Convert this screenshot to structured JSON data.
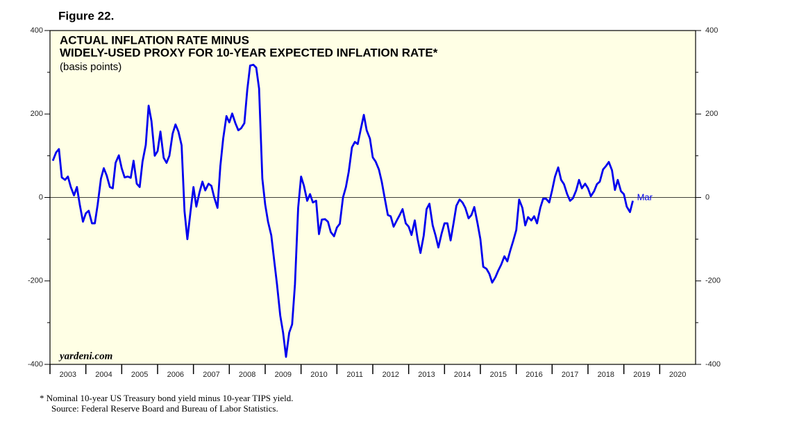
{
  "chart_data": {
    "type": "line",
    "figure_label": "Figure 22.",
    "title_lines": [
      "ACTUAL INFLATION RATE MINUS",
      "WIDELY-USED PROXY FOR 10-YEAR EXPECTED INFLATION RATE*"
    ],
    "subtitle": "(basis points)",
    "watermark": "yardeni.com",
    "annotation": "Mar",
    "footnotes": [
      "*  Nominal 10-year US Treasury bond yield minus 10-year TIPS yield.",
      "Source: Federal Reserve Board and Bureau of Labor Statistics."
    ],
    "color": "#0000ee",
    "xlim": [
      2003,
      2021
    ],
    "xticks": [
      2003,
      2004,
      2005,
      2006,
      2007,
      2008,
      2009,
      2010,
      2011,
      2012,
      2013,
      2014,
      2015,
      2016,
      2017,
      2018,
      2019,
      2020
    ],
    "ylim": [
      -400,
      400
    ],
    "yticks": [
      -400,
      -200,
      0,
      200,
      400
    ],
    "x": [
      2003.08,
      2003.17,
      2003.25,
      2003.33,
      2003.42,
      2003.5,
      2003.58,
      2003.67,
      2003.75,
      2003.83,
      2003.92,
      2004,
      2004.08,
      2004.17,
      2004.25,
      2004.33,
      2004.42,
      2004.5,
      2004.58,
      2004.67,
      2004.75,
      2004.83,
      2004.92,
      2005,
      2005.08,
      2005.17,
      2005.25,
      2005.33,
      2005.42,
      2005.5,
      2005.58,
      2005.67,
      2005.75,
      2005.83,
      2005.92,
      2006,
      2006.08,
      2006.17,
      2006.25,
      2006.33,
      2006.42,
      2006.5,
      2006.58,
      2006.67,
      2006.75,
      2006.83,
      2006.92,
      2007,
      2007.08,
      2007.17,
      2007.25,
      2007.33,
      2007.42,
      2007.5,
      2007.58,
      2007.67,
      2007.75,
      2007.83,
      2007.92,
      2008,
      2008.08,
      2008.17,
      2008.25,
      2008.33,
      2008.42,
      2008.5,
      2008.58,
      2008.67,
      2008.75,
      2008.83,
      2008.92,
      2009,
      2009.08,
      2009.17,
      2009.25,
      2009.33,
      2009.42,
      2009.5,
      2009.58,
      2009.67,
      2009.75,
      2009.83,
      2009.92,
      2010,
      2010.08,
      2010.17,
      2010.25,
      2010.33,
      2010.42,
      2010.5,
      2010.58,
      2010.67,
      2010.75,
      2010.83,
      2010.92,
      2011,
      2011.08,
      2011.17,
      2011.25,
      2011.33,
      2011.42,
      2011.5,
      2011.58,
      2011.67,
      2011.75,
      2011.83,
      2011.92,
      2012,
      2012.08,
      2012.17,
      2012.25,
      2012.33,
      2012.42,
      2012.5,
      2012.58,
      2012.67,
      2012.75,
      2012.83,
      2012.92,
      2013,
      2013.08,
      2013.17,
      2013.25,
      2013.33,
      2013.42,
      2013.5,
      2013.58,
      2013.67,
      2013.75,
      2013.83,
      2013.92,
      2014,
      2014.08,
      2014.17,
      2014.25,
      2014.33,
      2014.42,
      2014.5,
      2014.58,
      2014.67,
      2014.75,
      2014.83,
      2014.92,
      2015,
      2015.08,
      2015.17,
      2015.25,
      2015.33,
      2015.42,
      2015.5,
      2015.58,
      2015.67,
      2015.75,
      2015.83,
      2015.92,
      2016,
      2016.08,
      2016.17,
      2016.25,
      2016.33,
      2016.42,
      2016.5,
      2016.58,
      2016.67,
      2016.75,
      2016.83,
      2016.92,
      2017,
      2017.08,
      2017.17,
      2017.25,
      2017.33,
      2017.42,
      2017.5,
      2017.58,
      2017.67,
      2017.75,
      2017.83,
      2017.92,
      2018,
      2018.08,
      2018.17,
      2018.25,
      2018.33,
      2018.42,
      2018.5,
      2018.58,
      2018.67,
      2018.75,
      2018.83,
      2018.92,
      2019,
      2019.08,
      2019.17,
      2019.25
    ],
    "values": [
      88,
      108,
      116,
      48,
      42,
      50,
      25,
      5,
      25,
      -17,
      -58,
      -38,
      -32,
      -62,
      -62,
      -17,
      45,
      70,
      53,
      25,
      22,
      83,
      101,
      70,
      48,
      50,
      47,
      88,
      33,
      25,
      86,
      126,
      220,
      183,
      100,
      111,
      158,
      95,
      83,
      100,
      153,
      175,
      158,
      125,
      -33,
      -100,
      -33,
      25,
      -22,
      13,
      38,
      17,
      33,
      28,
      0,
      -25,
      75,
      141,
      195,
      180,
      201,
      178,
      161,
      166,
      178,
      258,
      316,
      318,
      311,
      261,
      45,
      -17,
      -58,
      -91,
      -150,
      -208,
      -283,
      -324,
      -382,
      -324,
      -304,
      -208,
      -25,
      50,
      28,
      -8,
      8,
      -12,
      -8,
      -88,
      -53,
      -52,
      -58,
      -83,
      -93,
      -72,
      -63,
      0,
      25,
      62,
      120,
      133,
      128,
      166,
      198,
      161,
      141,
      96,
      86,
      67,
      38,
      0,
      -42,
      -45,
      -70,
      -55,
      -42,
      -28,
      -62,
      -70,
      -90,
      -55,
      -100,
      -133,
      -91,
      -28,
      -15,
      -67,
      -91,
      -120,
      -86,
      -62,
      -62,
      -103,
      -62,
      -20,
      -5,
      -12,
      -25,
      -50,
      -42,
      -23,
      -62,
      -100,
      -166,
      -171,
      -183,
      -204,
      -191,
      -175,
      -161,
      -141,
      -153,
      -128,
      -103,
      -78,
      -5,
      -25,
      -67,
      -47,
      -55,
      -45,
      -62,
      -25,
      -3,
      -3,
      -12,
      17,
      50,
      72,
      42,
      32,
      8,
      -8,
      -2,
      17,
      42,
      22,
      33,
      22,
      3,
      15,
      32,
      38,
      67,
      75,
      85,
      65,
      18,
      42,
      15,
      8,
      -22,
      -35,
      -8
    ]
  }
}
